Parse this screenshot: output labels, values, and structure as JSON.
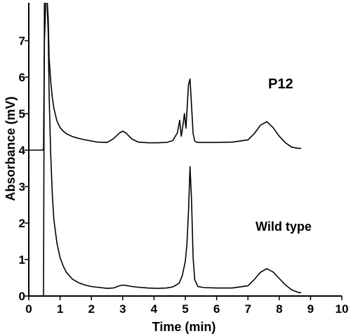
{
  "chart_data": {
    "type": "line",
    "xlabel": "Time (min)",
    "ylabel": "Absorbance (mV)",
    "xlim": [
      0,
      10
    ],
    "ylim": [
      0,
      8
    ],
    "x_ticks": [
      "0",
      "1",
      "2",
      "3",
      "4",
      "5",
      "6",
      "7",
      "8",
      "9",
      "10"
    ],
    "y_ticks": [
      "0",
      "1",
      "2",
      "3",
      "4",
      "5",
      "6",
      "7"
    ],
    "grid": false,
    "annotations": [
      {
        "text": "P12",
        "near_series": 0
      },
      {
        "text": "Wild type",
        "near_series": 1
      }
    ],
    "series": [
      {
        "name": "P12",
        "x": [
          0.0,
          0.45,
          0.47,
          0.5,
          0.55,
          0.58,
          0.62,
          0.65,
          0.7,
          0.75,
          0.8,
          0.9,
          1.0,
          1.1,
          1.2,
          1.4,
          1.6,
          1.8,
          2.0,
          2.2,
          2.5,
          2.7,
          2.9,
          3.0,
          3.1,
          3.3,
          3.5,
          3.8,
          4.1,
          4.4,
          4.6,
          4.75,
          4.82,
          4.87,
          4.92,
          4.97,
          5.02,
          5.06,
          5.1,
          5.15,
          5.2,
          5.25,
          5.3,
          5.35,
          5.45,
          5.6,
          6.0,
          6.5,
          7.0,
          7.2,
          7.4,
          7.6,
          7.8,
          8.0,
          8.2,
          8.4,
          8.6,
          8.7
        ],
        "values": [
          4.0,
          4.0,
          4.04,
          7.0,
          8.2,
          8.2,
          7.6,
          6.5,
          5.9,
          5.45,
          5.15,
          4.8,
          4.62,
          4.52,
          4.45,
          4.37,
          4.32,
          4.28,
          4.25,
          4.22,
          4.21,
          4.31,
          4.47,
          4.52,
          4.47,
          4.3,
          4.22,
          4.2,
          4.2,
          4.21,
          4.26,
          4.48,
          4.82,
          4.38,
          4.65,
          5.0,
          4.6,
          5.2,
          5.8,
          5.95,
          5.2,
          4.45,
          4.25,
          4.22,
          4.21,
          4.21,
          4.21,
          4.22,
          4.28,
          4.45,
          4.68,
          4.78,
          4.62,
          4.38,
          4.2,
          4.08,
          4.05,
          4.05
        ]
      },
      {
        "name": "Wild type",
        "x": [
          0.0,
          0.45,
          0.47,
          0.5,
          0.55,
          0.58,
          0.62,
          0.65,
          0.7,
          0.75,
          0.8,
          0.9,
          1.0,
          1.1,
          1.2,
          1.4,
          1.6,
          1.8,
          2.0,
          2.2,
          2.5,
          2.7,
          2.9,
          3.0,
          3.1,
          3.3,
          3.5,
          3.8,
          4.1,
          4.4,
          4.6,
          4.8,
          4.9,
          5.0,
          5.05,
          5.1,
          5.15,
          5.2,
          5.25,
          5.3,
          5.4,
          5.6,
          6.0,
          6.5,
          7.0,
          7.2,
          7.4,
          7.6,
          7.8,
          8.0,
          8.2,
          8.4,
          8.6,
          8.7
        ],
        "values": [
          0.0,
          0.0,
          0.04,
          8.2,
          8.2,
          8.2,
          7.2,
          5.5,
          3.9,
          2.8,
          2.1,
          1.45,
          1.05,
          0.82,
          0.65,
          0.46,
          0.36,
          0.3,
          0.26,
          0.24,
          0.21,
          0.22,
          0.28,
          0.3,
          0.29,
          0.26,
          0.24,
          0.22,
          0.21,
          0.22,
          0.25,
          0.35,
          0.55,
          0.95,
          1.4,
          2.3,
          3.55,
          2.6,
          1.05,
          0.45,
          0.26,
          0.23,
          0.22,
          0.22,
          0.28,
          0.45,
          0.65,
          0.75,
          0.66,
          0.48,
          0.3,
          0.17,
          0.1,
          0.09
        ]
      }
    ]
  }
}
